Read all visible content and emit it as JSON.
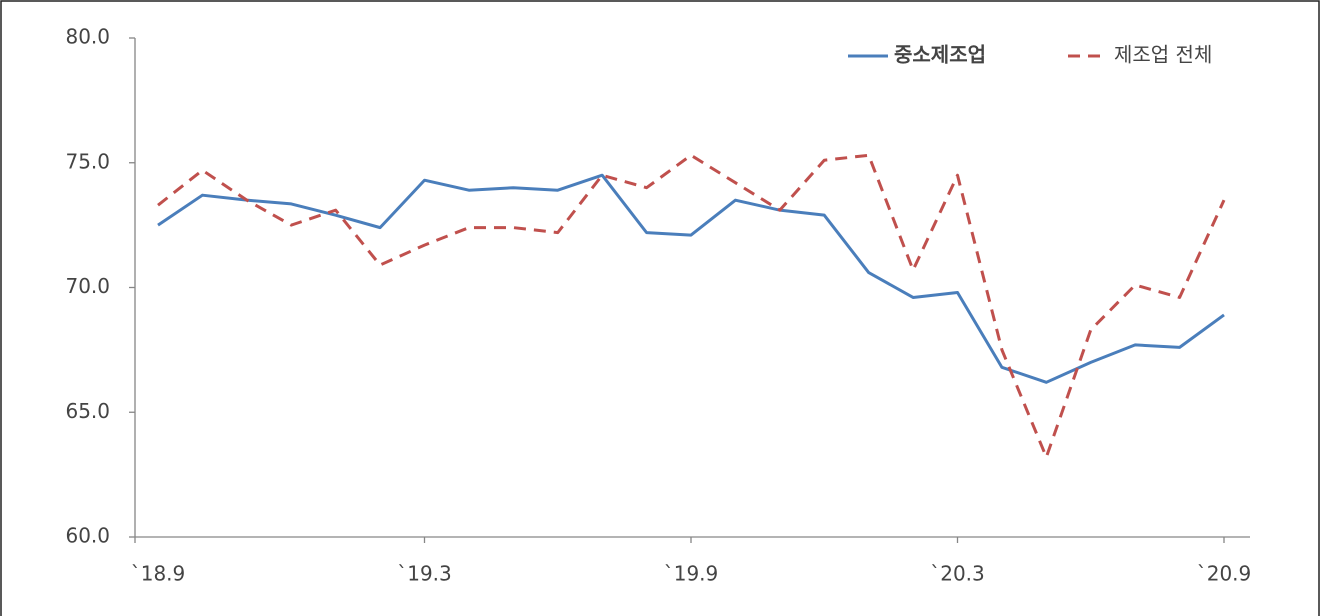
{
  "chart_data": {
    "type": "line",
    "categories": [
      "`18.9",
      null,
      null,
      null,
      null,
      null,
      "`19.3",
      null,
      null,
      null,
      null,
      null,
      "`19.9",
      null,
      null,
      null,
      null,
      null,
      "`20.3",
      null,
      null,
      null,
      null,
      null,
      "`20.9"
    ],
    "series": [
      {
        "name": "중소제조업",
        "color": "#4a7ebb",
        "dash": false,
        "values": [
          72.5,
          73.7,
          73.5,
          73.35,
          72.9,
          72.4,
          74.3,
          73.9,
          74.0,
          73.9,
          74.5,
          72.2,
          72.1,
          73.5,
          73.1,
          72.9,
          70.6,
          69.6,
          69.8,
          66.8,
          66.2,
          67.0,
          67.7,
          67.6,
          68.9
        ]
      },
      {
        "name": "제조업 전체",
        "color": "#c0504d",
        "dash": true,
        "values": [
          73.3,
          74.7,
          73.5,
          72.5,
          73.1,
          70.9,
          71.7,
          72.4,
          72.4,
          72.2,
          74.5,
          74.0,
          75.3,
          74.2,
          73.1,
          75.1,
          75.3,
          70.7,
          74.5,
          67.5,
          63.2,
          68.3,
          70.1,
          69.6,
          73.5
        ]
      }
    ],
    "ylim": [
      60,
      80
    ],
    "yticks": [
      {
        "value": 60,
        "label": "60.0"
      },
      {
        "value": 65,
        "label": "65.0"
      },
      {
        "value": 70,
        "label": "70.0"
      },
      {
        "value": 75,
        "label": "75.0"
      },
      {
        "value": 80,
        "label": "80.0"
      }
    ],
    "grid": false,
    "legend": "top-right"
  }
}
